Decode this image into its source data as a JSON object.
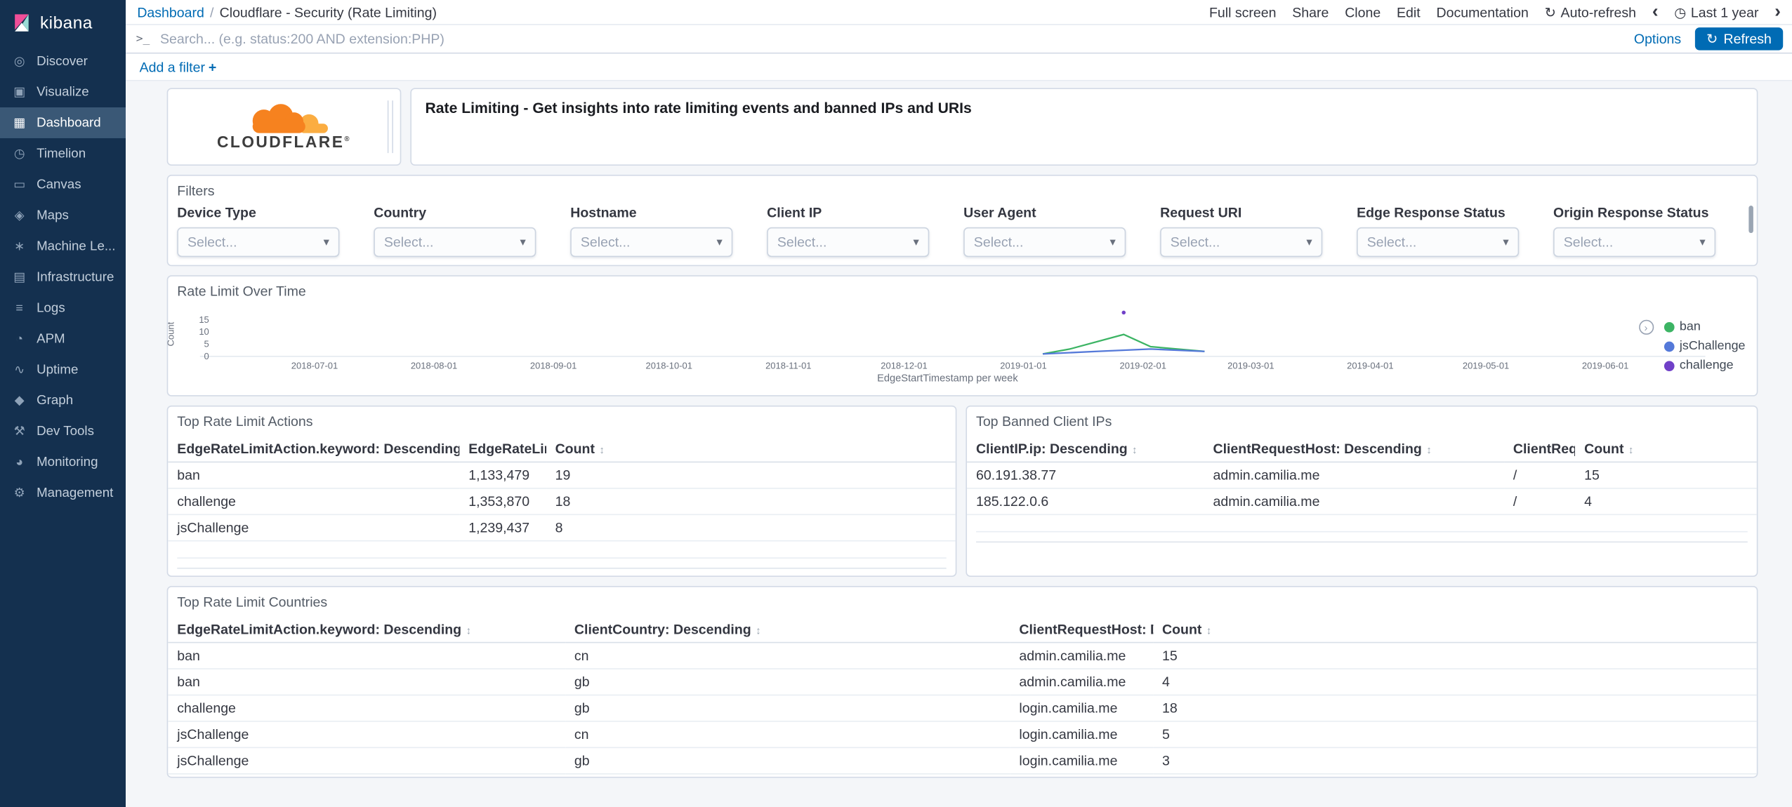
{
  "colors": {
    "accent_link": "#006BB4",
    "refresh_button_bg": "#006BB4",
    "sidebar_bg": "#14304F",
    "sidebar_selected_bg": "#3A5876",
    "panel_border": "#D3DAE6",
    "page_bg": "#F4F6F9",
    "cloudflare_orange": "#F6821F",
    "cloudflare_light_orange": "#FBAD41"
  },
  "ui": {
    "sort_glyph": "↕",
    "select_chevron": "▾",
    "clock_glyph": "◷",
    "refresh_icon_glyph": "↻",
    "legend_toggle_glyph": "›"
  },
  "sidebar": {
    "logo_text": "kibana",
    "items": [
      {
        "label": "Discover",
        "name": "sidebar-item-discover",
        "icon": "discover-icon",
        "glyph": "◎",
        "active": false
      },
      {
        "label": "Visualize",
        "name": "sidebar-item-visualize",
        "icon": "visualize-icon",
        "glyph": "▣",
        "active": false
      },
      {
        "label": "Dashboard",
        "name": "sidebar-item-dashboard",
        "icon": "dashboard-icon",
        "glyph": "▦",
        "active": true
      },
      {
        "label": "Timelion",
        "name": "sidebar-item-timelion",
        "icon": "timelion-icon",
        "glyph": "◷",
        "active": false
      },
      {
        "label": "Canvas",
        "name": "sidebar-item-canvas",
        "icon": "canvas-icon",
        "glyph": "▭",
        "active": false
      },
      {
        "label": "Maps",
        "name": "sidebar-item-maps",
        "icon": "maps-icon",
        "glyph": "◈",
        "active": false
      },
      {
        "label": "Machine Le...",
        "name": "sidebar-item-machine-learning",
        "icon": "machine-learning-icon",
        "glyph": "∗",
        "active": false
      },
      {
        "label": "Infrastructure",
        "name": "sidebar-item-infrastructure",
        "icon": "infrastructure-icon",
        "glyph": "▤",
        "active": false
      },
      {
        "label": "Logs",
        "name": "sidebar-item-logs",
        "icon": "logs-icon",
        "glyph": "≡",
        "active": false
      },
      {
        "label": "APM",
        "name": "sidebar-item-apm",
        "icon": "apm-icon",
        "glyph": "◔",
        "active": false
      },
      {
        "label": "Uptime",
        "name": "sidebar-item-uptime",
        "icon": "uptime-icon",
        "glyph": "∿",
        "active": false
      },
      {
        "label": "Graph",
        "name": "sidebar-item-graph",
        "icon": "graph-icon",
        "glyph": "◆",
        "active": false
      },
      {
        "label": "Dev Tools",
        "name": "sidebar-item-dev-tools",
        "icon": "dev-tools-icon",
        "glyph": "⚒",
        "active": false
      },
      {
        "label": "Monitoring",
        "name": "sidebar-item-monitoring",
        "icon": "monitoring-icon",
        "glyph": "◕",
        "active": false
      },
      {
        "label": "Management",
        "name": "sidebar-item-management",
        "icon": "management-icon",
        "glyph": "⚙",
        "active": false
      }
    ]
  },
  "topbar": {
    "breadcrumb_root": "Dashboard",
    "breadcrumb_separator": "/",
    "breadcrumb_current": "Cloudflare - Security (Rate Limiting)",
    "actions": [
      {
        "label": "Full screen",
        "name": "full-screen-button"
      },
      {
        "label": "Share",
        "name": "share-button"
      },
      {
        "label": "Clone",
        "name": "clone-button"
      },
      {
        "label": "Edit",
        "name": "edit-button"
      },
      {
        "label": "Documentation",
        "name": "documentation-link"
      }
    ],
    "auto_refresh_label": "Auto-refresh",
    "prev_glyph": "‹",
    "next_glyph": "›",
    "time_range": "Last 1 year"
  },
  "querybar": {
    "placeholder": "Search... (e.g. status:200 AND extension:PHP)",
    "prompt": ">_",
    "options_label": "Options",
    "refresh_label": "Refresh"
  },
  "filterbar": {
    "add_filter_label": "Add a filter",
    "plus_glyph": "+"
  },
  "brand_panel": {
    "logo_text": "CLOUDFLARE",
    "registered": "®"
  },
  "description_panel": {
    "text": "Rate Limiting - Get insights into rate limiting events and banned IPs and URIs"
  },
  "filters_panel": {
    "title": "Filters",
    "fields": [
      {
        "label": "Device Type",
        "placeholder": "Select...",
        "name": "device-type-filter-select"
      },
      {
        "label": "Country",
        "placeholder": "Select...",
        "name": "country-filter-select"
      },
      {
        "label": "Hostname",
        "placeholder": "Select...",
        "name": "hostname-filter-select"
      },
      {
        "label": "Client IP",
        "placeholder": "Select...",
        "name": "client-ip-filter-select"
      },
      {
        "label": "User Agent",
        "placeholder": "Select...",
        "name": "user-agent-filter-select"
      },
      {
        "label": "Request URI",
        "placeholder": "Select...",
        "name": "request-uri-filter-select"
      },
      {
        "label": "Edge Response Status",
        "placeholder": "Select...",
        "name": "edge-response-status-filter-select"
      },
      {
        "label": "Origin Response Status",
        "placeholder": "Select...",
        "name": "origin-response-status-filter-select"
      }
    ]
  },
  "chart_panel": {
    "title": "Rate Limit Over Time"
  },
  "chart_data": {
    "type": "line",
    "title": "Rate Limit Over Time",
    "xlabel": "EdgeStartTimestamp per week",
    "ylabel": "Count",
    "x_domain": [
      "2018-06-06",
      "2019-06-24"
    ],
    "y_domain": [
      0,
      15
    ],
    "yticks": [
      0,
      5,
      10,
      15
    ],
    "xticks": [
      "2018-07-01",
      "2018-08-01",
      "2018-09-01",
      "2018-10-01",
      "2018-11-01",
      "2018-12-01",
      "2019-01-01",
      "2019-02-01",
      "2019-03-01",
      "2019-04-01",
      "2019-05-01",
      "2019-06-01"
    ],
    "grid": false,
    "legend_position": "right",
    "series": [
      {
        "name": "ban",
        "color": "#3CB464",
        "type": "line",
        "points": [
          [
            "2019-01-06",
            1
          ],
          [
            "2019-01-13",
            3
          ],
          [
            "2019-01-27",
            9
          ],
          [
            "2019-02-03",
            4
          ],
          [
            "2019-02-17",
            2
          ]
        ]
      },
      {
        "name": "jsChallenge",
        "color": "#5479D9",
        "type": "line",
        "points": [
          [
            "2019-01-06",
            1
          ],
          [
            "2019-01-20",
            2
          ],
          [
            "2019-02-03",
            3
          ],
          [
            "2019-02-17",
            2
          ]
        ]
      },
      {
        "name": "challenge",
        "color": "#7040C8",
        "type": "point",
        "points": [
          [
            "2019-01-27",
            18
          ]
        ]
      }
    ]
  },
  "actions_table": {
    "title": "Top Rate Limit Actions",
    "columns": [
      "EdgeRateLimitAction.keyword: Descending",
      "EdgeRateLimitID: Descending",
      "Count"
    ],
    "rows": [
      [
        "ban",
        "1,133,479",
        "19"
      ],
      [
        "challenge",
        "1,353,870",
        "18"
      ],
      [
        "jsChallenge",
        "1,239,437",
        "8"
      ]
    ]
  },
  "banned_ips_table": {
    "title": "Top Banned Client IPs",
    "columns": [
      "ClientIP.ip: Descending",
      "ClientRequestHost: Descending",
      "ClientRequestURI.keyword: Descending",
      "Count"
    ],
    "rows": [
      [
        "60.191.38.77",
        "admin.camilia.me",
        "/",
        "15"
      ],
      [
        "185.122.0.6",
        "admin.camilia.me",
        "/",
        "4"
      ]
    ]
  },
  "countries_table": {
    "title": "Top Rate Limit Countries",
    "columns": [
      "EdgeRateLimitAction.keyword: Descending",
      "ClientCountry: Descending",
      "ClientRequestHost: Descending",
      "Count"
    ],
    "rows": [
      [
        "ban",
        "cn",
        "admin.camilia.me",
        "15"
      ],
      [
        "ban",
        "gb",
        "admin.camilia.me",
        "4"
      ],
      [
        "challenge",
        "gb",
        "login.camilia.me",
        "18"
      ],
      [
        "jsChallenge",
        "cn",
        "login.camilia.me",
        "5"
      ],
      [
        "jsChallenge",
        "gb",
        "login.camilia.me",
        "3"
      ]
    ]
  }
}
